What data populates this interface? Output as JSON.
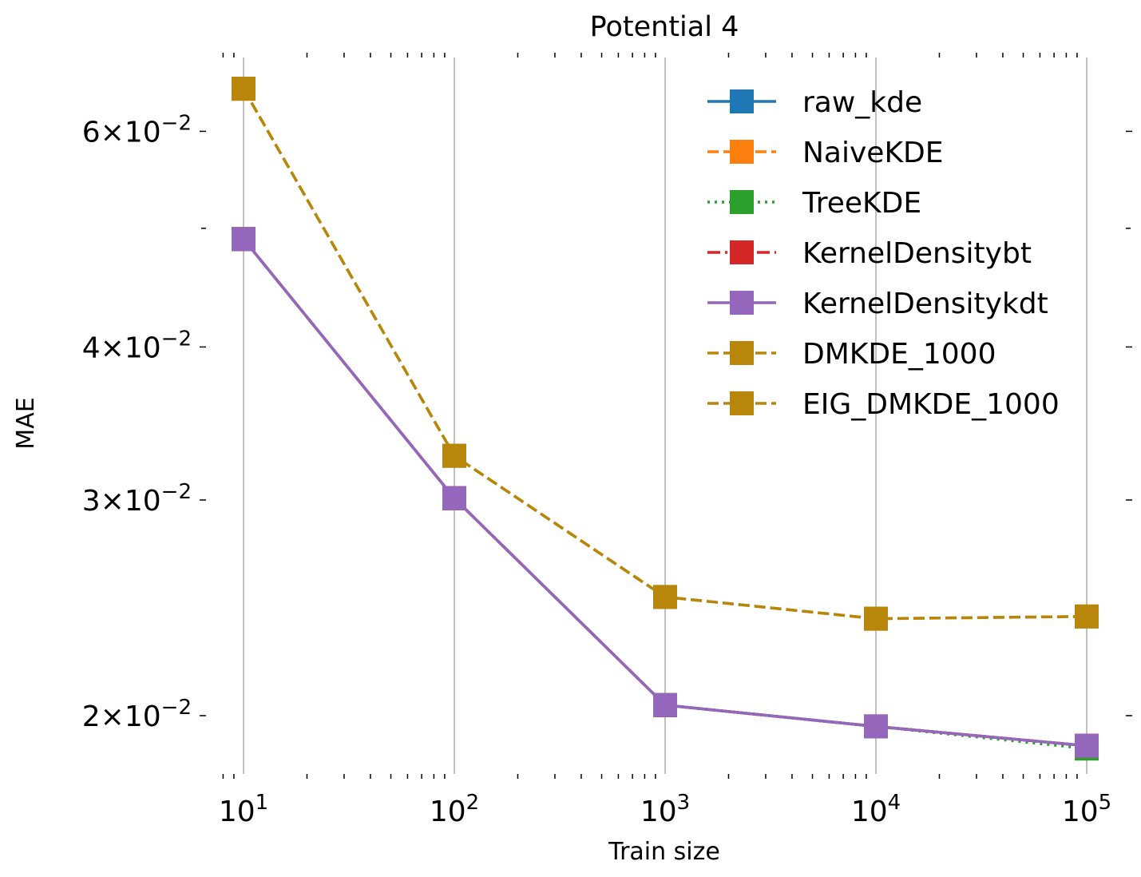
{
  "chart_data": {
    "type": "line",
    "title": "Potential 4",
    "xlabel": "Train size",
    "ylabel": "MAE",
    "xscale": "log",
    "yscale": "log",
    "xlim": [
      7.2,
      130000
    ],
    "ylim": [
      0.0181,
      0.067
    ],
    "grid": "x-major",
    "legend_position": "top-right",
    "x": [
      10,
      100,
      1000,
      10000,
      100000
    ],
    "x_ticks": [
      {
        "value": 10,
        "base": "10",
        "exp": "1"
      },
      {
        "value": 100,
        "base": "10",
        "exp": "2"
      },
      {
        "value": 1000,
        "base": "10",
        "exp": "3"
      },
      {
        "value": 10000,
        "base": "10",
        "exp": "4"
      },
      {
        "value": 100000,
        "base": "10",
        "exp": "5"
      }
    ],
    "y_ticks": [
      {
        "value": 0.02,
        "mant": "2",
        "times": "×",
        "base": "10",
        "exp": "−2"
      },
      {
        "value": 0.03,
        "mant": "3",
        "times": "×",
        "base": "10",
        "exp": "−2"
      },
      {
        "value": 0.04,
        "mant": "4",
        "times": "×",
        "base": "10",
        "exp": "−2"
      },
      {
        "value": 0.06,
        "mant": "6",
        "times": "×",
        "base": "10",
        "exp": "−2"
      }
    ],
    "y_minor_ticks": [
      0.05
    ],
    "series": [
      {
        "name": "raw_kde",
        "color": "#1f77b4",
        "dash": "solid",
        "values": [
          0.049,
          0.0301,
          0.0204,
          0.0196,
          0.0189
        ]
      },
      {
        "name": "NaiveKDE",
        "color": "#ff7f0e",
        "dash": "dashed",
        "values": [
          0.049,
          0.0301,
          0.0204,
          0.0196,
          0.0189
        ]
      },
      {
        "name": "TreeKDE",
        "color": "#2ca02c",
        "dash": "dotted",
        "values": [
          0.049,
          0.0301,
          0.0204,
          0.0196,
          0.0188
        ]
      },
      {
        "name": "KernelDensitybt",
        "color": "#d62728",
        "dash": "dashdot",
        "values": [
          0.049,
          0.0301,
          0.0204,
          0.0196,
          0.0189
        ]
      },
      {
        "name": "KernelDensitykdt",
        "color": "#9467bd",
        "dash": "solid",
        "values": [
          0.049,
          0.0301,
          0.0204,
          0.0196,
          0.0189
        ]
      },
      {
        "name": "DMKDE_1000",
        "color": "#b8860b",
        "dash": "dashed",
        "values": [
          0.065,
          0.0326,
          0.025,
          0.024,
          0.0241
        ]
      },
      {
        "name": "EIG_DMKDE_1000",
        "color": "#b8860b",
        "dash": "dashed",
        "values": [
          0.065,
          0.0326,
          0.025,
          0.024,
          0.0241
        ]
      }
    ]
  }
}
